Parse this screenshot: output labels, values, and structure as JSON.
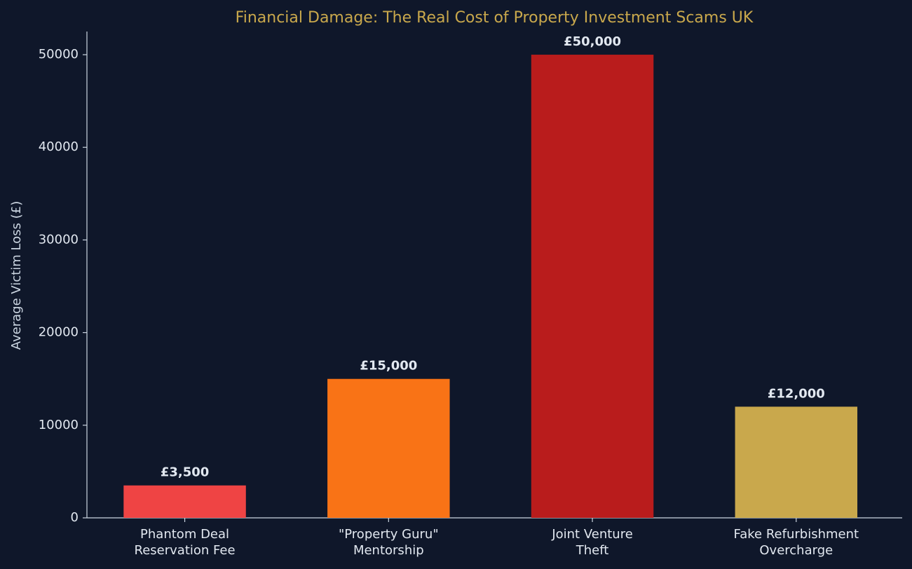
{
  "chart_data": {
    "type": "bar",
    "title": "Financial Damage: The Real Cost of Property Investment Scams UK",
    "y_label": "Average Victim Loss (£)",
    "categories": [
      "Phantom Deal\nReservation Fee",
      "\"Property Guru\"\nMentorship",
      "Joint Venture\nTheft",
      "Fake Refurbishment\nOvercharge"
    ],
    "values": [
      3500,
      15000,
      50000,
      12000
    ],
    "value_labels": [
      "£3,500",
      "£15,000",
      "£50,000",
      "£12,000"
    ],
    "colors": [
      "#ef4444",
      "#f97316",
      "#b91c1c",
      "#c9a84c"
    ],
    "ylim": [
      0,
      52500
    ],
    "yticks": [
      0,
      10000,
      20000,
      30000,
      40000,
      50000
    ],
    "grid": false
  }
}
